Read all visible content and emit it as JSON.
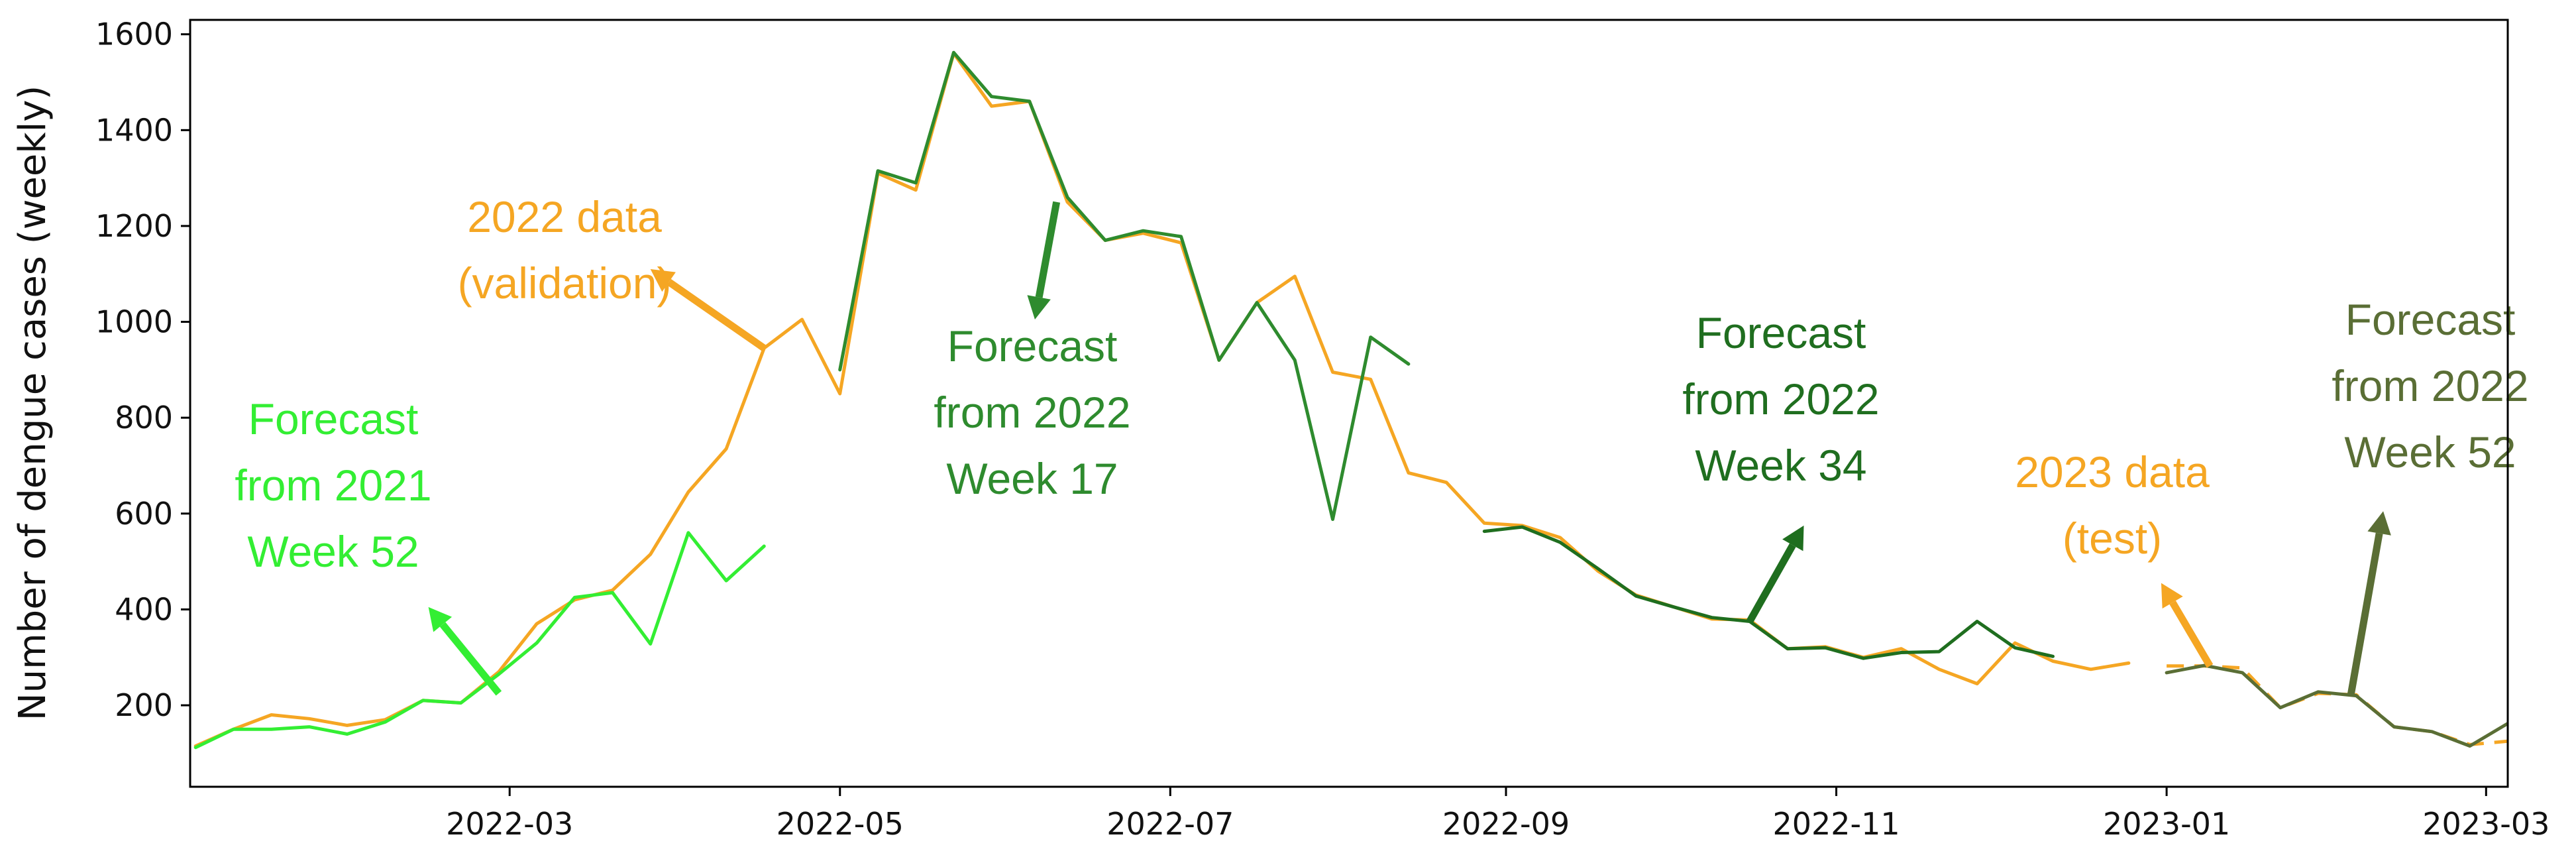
{
  "chart_data": {
    "type": "line",
    "title": "",
    "xlabel": "",
    "ylabel": "Number of dengue cases (weekly)",
    "xlim": [
      "2022-01-01",
      "2023-03-05"
    ],
    "ylim": [
      30,
      1630
    ],
    "grid": false,
    "x_ticks": [
      "2022-03",
      "2022-05",
      "2022-07",
      "2022-09",
      "2022-11",
      "2023-01",
      "2023-03"
    ],
    "y_ticks": [
      200,
      400,
      600,
      800,
      1000,
      1200,
      1400,
      1600
    ],
    "colors": {
      "data": "#F5A623",
      "forecast_2021_w52": "#33EE33",
      "forecast_2022_w17": "#2E8B2E",
      "forecast_2022_w34": "#1F6E1F",
      "forecast_2022_w52": "#5A6E35"
    },
    "series": [
      {
        "style": "solid",
        "color_key": "data",
        "points": [
          [
            "2022-01-02",
            115
          ],
          [
            "2022-01-09",
            150
          ],
          [
            "2022-01-16",
            180
          ],
          [
            "2022-01-23",
            172
          ],
          [
            "2022-01-30",
            158
          ],
          [
            "2022-02-06",
            170
          ],
          [
            "2022-02-13",
            210
          ],
          [
            "2022-02-20",
            205
          ],
          [
            "2022-02-27",
            270
          ],
          [
            "2022-03-06",
            370
          ],
          [
            "2022-03-13",
            420
          ],
          [
            "2022-03-20",
            440
          ],
          [
            "2022-03-27",
            515
          ],
          [
            "2022-04-03",
            645
          ],
          [
            "2022-04-10",
            735
          ],
          [
            "2022-04-17",
            945
          ],
          [
            "2022-04-24",
            1005
          ],
          [
            "2022-05-01",
            850
          ],
          [
            "2022-05-08",
            1310
          ],
          [
            "2022-05-15",
            1275
          ],
          [
            "2022-05-22",
            1560
          ],
          [
            "2022-05-29",
            1450
          ],
          [
            "2022-06-05",
            1460
          ],
          [
            "2022-06-12",
            1250
          ],
          [
            "2022-06-19",
            1170
          ],
          [
            "2022-06-26",
            1185
          ],
          [
            "2022-07-03",
            1165
          ],
          [
            "2022-07-10",
            920
          ],
          [
            "2022-07-17",
            1040
          ],
          [
            "2022-07-24",
            1095
          ],
          [
            "2022-07-31",
            895
          ],
          [
            "2022-08-07",
            880
          ],
          [
            "2022-08-14",
            685
          ],
          [
            "2022-08-21",
            665
          ],
          [
            "2022-08-28",
            580
          ],
          [
            "2022-09-04",
            575
          ],
          [
            "2022-09-11",
            550
          ],
          [
            "2022-09-18",
            480
          ],
          [
            "2022-09-25",
            430
          ],
          [
            "2022-10-02",
            405
          ],
          [
            "2022-10-09",
            380
          ],
          [
            "2022-10-16",
            378
          ],
          [
            "2022-10-23",
            318
          ],
          [
            "2022-10-30",
            322
          ],
          [
            "2022-11-06",
            300
          ],
          [
            "2022-11-13",
            318
          ],
          [
            "2022-11-20",
            275
          ],
          [
            "2022-11-27",
            245
          ],
          [
            "2022-12-04",
            330
          ],
          [
            "2022-12-11",
            292
          ],
          [
            "2022-12-18",
            275
          ],
          [
            "2022-12-25",
            288
          ]
        ]
      },
      {
        "style": "dashed",
        "color_key": "data",
        "points": [
          [
            "2023-01-01",
            282
          ],
          [
            "2023-01-08",
            282
          ],
          [
            "2023-01-15",
            278
          ],
          [
            "2023-01-22",
            195
          ],
          [
            "2023-01-29",
            225
          ],
          [
            "2023-02-05",
            222
          ],
          [
            "2023-02-12",
            155
          ],
          [
            "2023-02-19",
            145
          ],
          [
            "2023-02-26",
            118
          ],
          [
            "2023-03-05",
            125
          ]
        ]
      },
      {
        "style": "solid",
        "color_key": "forecast_2021_w52",
        "points": [
          [
            "2022-01-02",
            112
          ],
          [
            "2022-01-09",
            150
          ],
          [
            "2022-01-16",
            150
          ],
          [
            "2022-01-23",
            155
          ],
          [
            "2022-01-30",
            140
          ],
          [
            "2022-02-06",
            165
          ],
          [
            "2022-02-13",
            210
          ],
          [
            "2022-02-20",
            205
          ],
          [
            "2022-02-27",
            265
          ],
          [
            "2022-03-06",
            330
          ],
          [
            "2022-03-13",
            425
          ],
          [
            "2022-03-20",
            435
          ],
          [
            "2022-03-27",
            328
          ],
          [
            "2022-04-03",
            560
          ],
          [
            "2022-04-10",
            460
          ],
          [
            "2022-04-17",
            532
          ]
        ]
      },
      {
        "style": "solid",
        "color_key": "forecast_2022_w17",
        "points": [
          [
            "2022-05-01",
            900
          ],
          [
            "2022-05-08",
            1315
          ],
          [
            "2022-05-15",
            1290
          ],
          [
            "2022-05-22",
            1562
          ],
          [
            "2022-05-29",
            1470
          ],
          [
            "2022-06-05",
            1460
          ],
          [
            "2022-06-12",
            1260
          ],
          [
            "2022-06-19",
            1170
          ],
          [
            "2022-06-26",
            1190
          ],
          [
            "2022-07-03",
            1178
          ],
          [
            "2022-07-10",
            920
          ],
          [
            "2022-07-17",
            1040
          ],
          [
            "2022-07-24",
            920
          ],
          [
            "2022-07-31",
            588
          ],
          [
            "2022-08-07",
            968
          ],
          [
            "2022-08-14",
            912
          ]
        ]
      },
      {
        "style": "solid",
        "color_key": "forecast_2022_w34",
        "points": [
          [
            "2022-08-28",
            563
          ],
          [
            "2022-09-04",
            572
          ],
          [
            "2022-09-11",
            540
          ],
          [
            "2022-09-18",
            485
          ],
          [
            "2022-09-25",
            428
          ],
          [
            "2022-10-02",
            405
          ],
          [
            "2022-10-09",
            383
          ],
          [
            "2022-10-16",
            375
          ],
          [
            "2022-10-23",
            318
          ],
          [
            "2022-10-30",
            320
          ],
          [
            "2022-11-06",
            298
          ],
          [
            "2022-11-13",
            310
          ],
          [
            "2022-11-20",
            312
          ],
          [
            "2022-11-27",
            375
          ],
          [
            "2022-12-04",
            320
          ],
          [
            "2022-12-11",
            302
          ]
        ]
      },
      {
        "style": "solid",
        "color_key": "forecast_2022_w52",
        "points": [
          [
            "2023-01-01",
            268
          ],
          [
            "2023-01-08",
            283
          ],
          [
            "2023-01-15",
            268
          ],
          [
            "2023-01-22",
            195
          ],
          [
            "2023-01-29",
            228
          ],
          [
            "2023-02-05",
            220
          ],
          [
            "2023-02-12",
            155
          ],
          [
            "2023-02-19",
            145
          ],
          [
            "2023-02-26",
            115
          ],
          [
            "2023-03-05",
            162
          ]
        ]
      }
    ],
    "annotations": [
      {
        "lines": [
          "2022 data",
          "(validation)"
        ],
        "color_key": "data",
        "arrow_from": [
          "2022-04-17",
          945
        ],
        "arrow_to": [
          "2022-03-27",
          1110
        ]
      },
      {
        "lines": [
          "Forecast",
          "from 2021",
          "Week 52"
        ],
        "color_key": "forecast_2021_w52",
        "arrow_from": [
          "2022-02-27",
          225
        ],
        "arrow_to": [
          "2022-02-14",
          405
        ]
      },
      {
        "lines": [
          "Forecast",
          "from 2022",
          "Week 17"
        ],
        "color_key": "forecast_2022_w17",
        "arrow_from": [
          "2022-06-10",
          1250
        ],
        "arrow_to": [
          "2022-06-06",
          1005
        ]
      },
      {
        "lines": [
          "Forecast",
          "from 2022",
          "Week 34"
        ],
        "color_key": "forecast_2022_w34",
        "arrow_from": [
          "2022-10-16",
          375
        ],
        "arrow_to": [
          "2022-10-26",
          575
        ]
      },
      {
        "lines": [
          "2023 data",
          "(test)"
        ],
        "color_key": "data",
        "arrow_from": [
          "2023-01-09",
          282
        ],
        "arrow_to": [
          "2022-12-31",
          455
        ]
      },
      {
        "lines": [
          "Forecast",
          "from 2022",
          "Week 52"
        ],
        "color_key": "forecast_2022_w52",
        "arrow_from": [
          "2023-02-04",
          220
        ],
        "arrow_to": [
          "2023-02-10",
          605
        ]
      }
    ]
  }
}
